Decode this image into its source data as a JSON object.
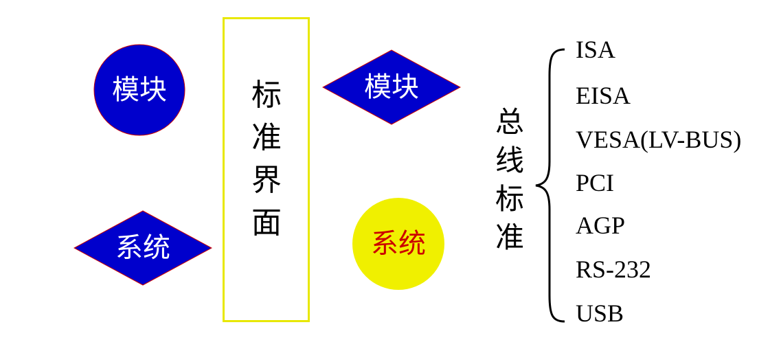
{
  "diagram": {
    "left_circle": {
      "label": "模块",
      "fill": "#0000cc",
      "text_color": "#ffffff"
    },
    "left_diamond": {
      "label": "系统",
      "fill": "#0000cc",
      "text_color": "#ffffff"
    },
    "interface": {
      "chars": [
        "标",
        "准",
        "界",
        "面"
      ],
      "border_color": "#e8e800"
    },
    "right_diamond": {
      "label": "模块",
      "fill": "#0000cc",
      "text_color": "#ffffff"
    },
    "right_circle": {
      "label": "系统",
      "fill": "#f0f000",
      "text_color": "#cc0000"
    },
    "bus_standard": {
      "chars": [
        "总",
        "线",
        "标",
        "准"
      ],
      "items": [
        "ISA",
        "EISA",
        "VESA(LV-BUS)",
        "PCI",
        "AGP",
        "RS-232",
        "USB"
      ]
    }
  }
}
